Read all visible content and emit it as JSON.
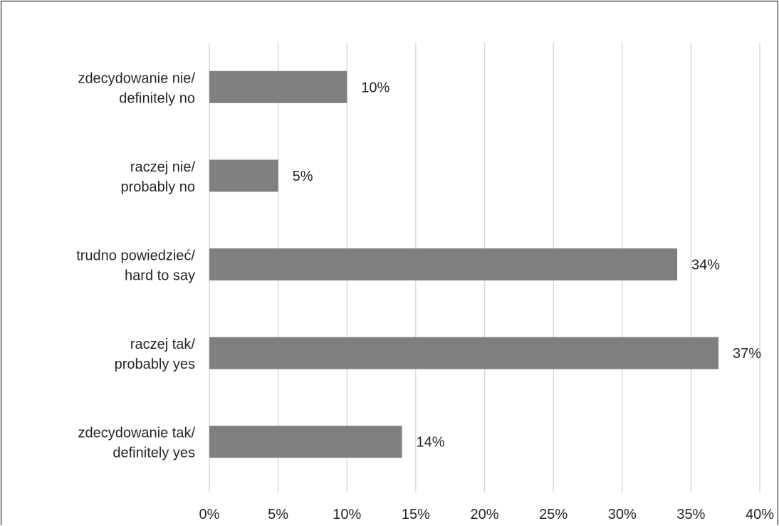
{
  "chart_data": {
    "type": "bar",
    "orientation": "horizontal",
    "categories": [
      [
        "zdecydowanie nie/",
        "definitely no"
      ],
      [
        "raczej nie/",
        "probably no"
      ],
      [
        "trudno powiedzieć/",
        "hard to say"
      ],
      [
        "raczej tak/",
        "probably yes"
      ],
      [
        "zdecydowanie tak/",
        "definitely yes"
      ]
    ],
    "values": [
      10,
      5,
      34,
      37,
      14
    ],
    "data_labels": [
      "10%",
      "5%",
      "34%",
      "37%",
      "14%"
    ],
    "xlim": [
      0,
      40
    ],
    "x_ticks": [
      "0%",
      "5%",
      "10%",
      "15%",
      "20%",
      "25%",
      "30%",
      "35%",
      "40%"
    ],
    "grid": true,
    "bar_color": "#7f7f7f",
    "grid_color": "#d9d9d9"
  }
}
